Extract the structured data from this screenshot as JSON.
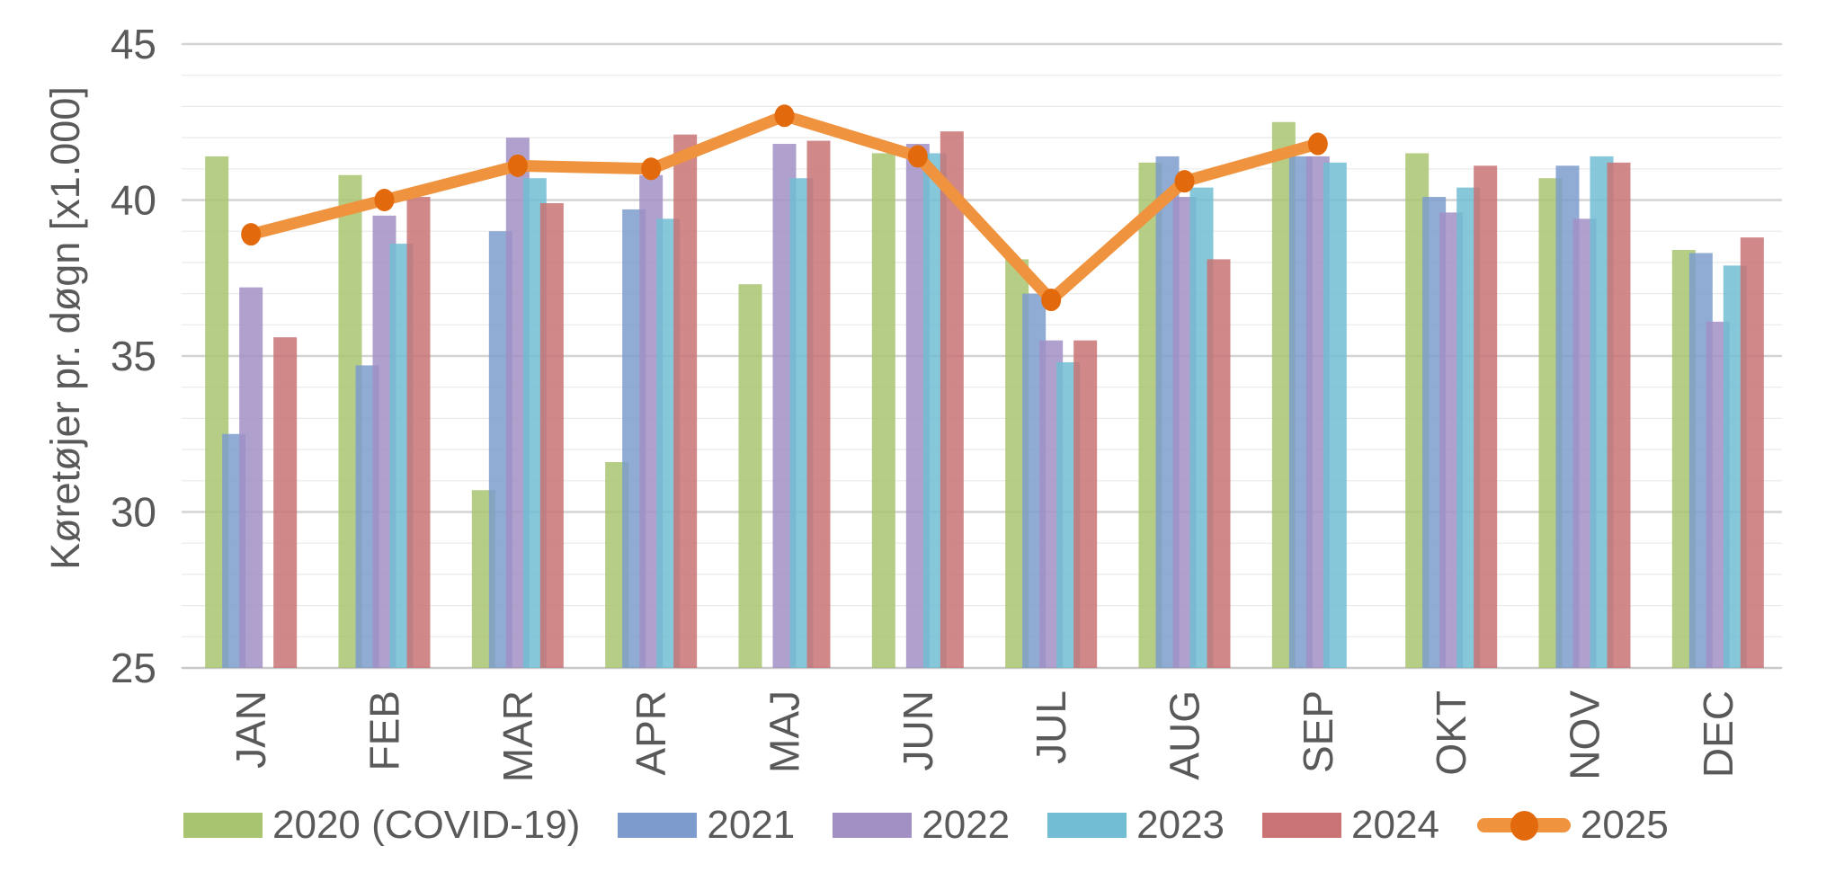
{
  "chart_data": {
    "type": "bar+line",
    "title": "",
    "ylabel": "Køretøjer pr. døgn [x1.000]",
    "xlabel": "",
    "categories": [
      "JAN",
      "FEB",
      "MAR",
      "APR",
      "MAJ",
      "JUN",
      "JUL",
      "AUG",
      "SEP",
      "OKT",
      "NOV",
      "DEC"
    ],
    "y_axis": {
      "range": [
        25,
        45
      ],
      "major_ticks": [
        45,
        40,
        35,
        30,
        25
      ],
      "minor_grid_step": 1
    },
    "grid": "horizontal",
    "legend_position": "bottom",
    "series": [
      {
        "name": "2020 (COVID-19)",
        "type": "bar",
        "color": "#A9C470",
        "values": [
          41.4,
          40.8,
          30.7,
          31.6,
          37.3,
          41.5,
          38.1,
          41.2,
          42.5,
          41.5,
          40.7,
          38.4
        ]
      },
      {
        "name": "2021",
        "type": "bar",
        "color": "#7D9CCD",
        "values": [
          32.5,
          34.7,
          39.0,
          39.7,
          null,
          null,
          37.0,
          41.4,
          41.4,
          40.1,
          41.1,
          38.3
        ]
      },
      {
        "name": "2022",
        "type": "bar",
        "color": "#A28FC4",
        "values": [
          37.2,
          39.5,
          42.0,
          40.8,
          41.8,
          41.8,
          35.5,
          40.1,
          41.4,
          39.6,
          39.4,
          36.1
        ]
      },
      {
        "name": "2023",
        "type": "bar",
        "color": "#72BDD4",
        "values": [
          null,
          38.6,
          40.7,
          39.4,
          40.7,
          41.5,
          34.8,
          40.4,
          41.2,
          40.4,
          41.4,
          37.9
        ]
      },
      {
        "name": "2024",
        "type": "bar",
        "color": "#C97374",
        "values": [
          35.6,
          40.1,
          39.9,
          42.1,
          41.9,
          42.2,
          35.5,
          38.1,
          null,
          41.1,
          41.2,
          38.8
        ]
      },
      {
        "name": "2025",
        "type": "line",
        "color": "#F0933E",
        "marker_color": "#E2690C",
        "values": [
          38.9,
          40.0,
          41.1,
          41.0,
          42.7,
          41.4,
          36.8,
          40.6,
          41.8,
          null,
          null,
          null
        ]
      }
    ],
    "colors": {
      "text": "#595959",
      "major_gridline": "#D4D4D4",
      "minor_gridline": "#EAEAEA",
      "baseline": "#C9C9C9",
      "background": "#FFFFFF"
    }
  }
}
